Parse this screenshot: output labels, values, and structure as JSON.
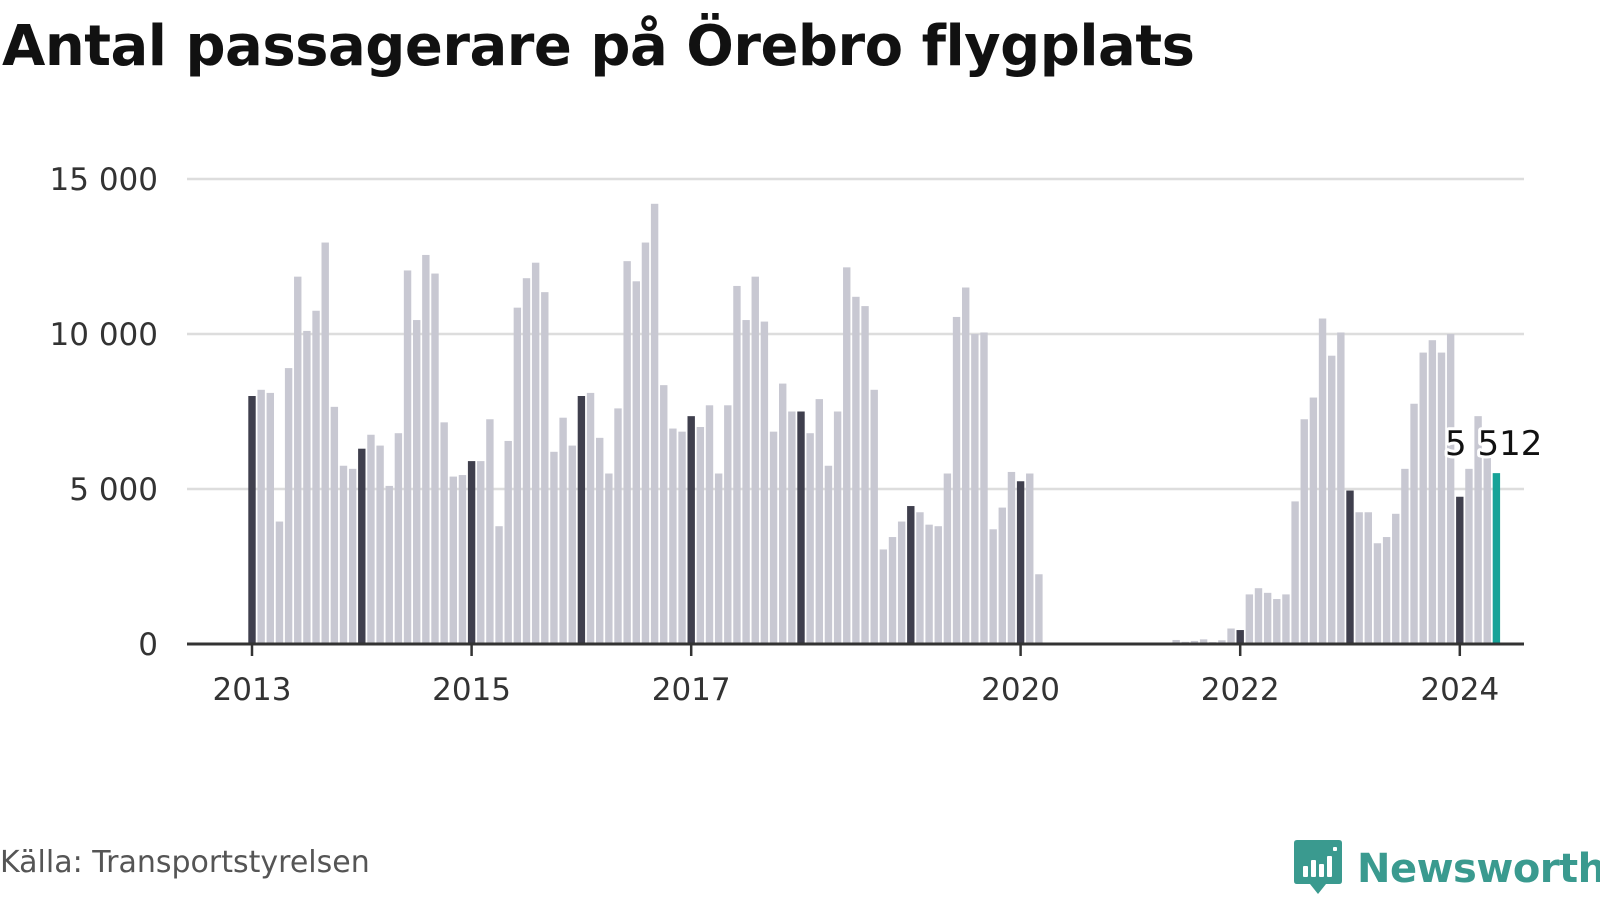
{
  "title": "Antal passagerare på Örebro flygplats",
  "source": "Källa: Transportstyrelsen",
  "brand": {
    "name": "Newsworthy",
    "icon": "newsworthy-logo-icon"
  },
  "colors": {
    "bar": "#c8c8d2",
    "january": "#3f3f4d",
    "latest": "#17a398",
    "grid": "#dddddd",
    "axis": "#333333",
    "brand": "#3a9a8f"
  },
  "chart_data": {
    "type": "bar",
    "title": "Antal passagerare på Örebro flygplats",
    "xlabel": "",
    "ylabel": "",
    "ylim": [
      0,
      15000
    ],
    "grid": true,
    "start": "2013-01",
    "x_ticks": [
      "2013",
      "2015",
      "2017",
      "2020",
      "2022",
      "2024"
    ],
    "y_ticks": [
      "0",
      "5 000",
      "10 000",
      "15 000"
    ],
    "highlight_label": "5 512",
    "values": [
      8000,
      8200,
      8100,
      3950,
      8900,
      11850,
      10100,
      10750,
      12950,
      7650,
      5750,
      5650,
      6300,
      6750,
      6400,
      5100,
      6800,
      12050,
      10450,
      12550,
      11950,
      7150,
      5400,
      5450,
      5900,
      5900,
      7250,
      3800,
      6550,
      10850,
      11800,
      12300,
      11350,
      6200,
      7300,
      6400,
      8000,
      8100,
      6650,
      5500,
      7600,
      12350,
      11700,
      12950,
      14200,
      8350,
      6950,
      6850,
      7350,
      7000,
      7700,
      5500,
      7700,
      11550,
      10450,
      11850,
      10400,
      6850,
      8400,
      7500,
      7500,
      6800,
      7900,
      5750,
      7500,
      12150,
      11200,
      10900,
      8200,
      3050,
      3450,
      3950,
      4450,
      4250,
      3850,
      3800,
      5500,
      10550,
      11500,
      10000,
      10050,
      3700,
      4400,
      5550,
      5250,
      5500,
      2250,
      0,
      0,
      0,
      0,
      0,
      0,
      0,
      0,
      0,
      0,
      0,
      0,
      0,
      0,
      130,
      70,
      100,
      150,
      60,
      120,
      500,
      450,
      1600,
      1800,
      1650,
      1450,
      1600,
      4600,
      7250,
      7950,
      10500,
      9300,
      10050,
      4950,
      4250,
      4250,
      3250,
      3450,
      4200,
      5650,
      7750,
      9400,
      9800,
      9400,
      10000,
      4750,
      5650,
      7350,
      6000,
      5512
    ]
  }
}
